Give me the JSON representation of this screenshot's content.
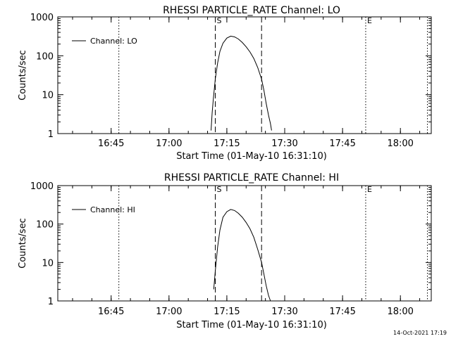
{
  "timestamp": "14-Oct-2021 17:19",
  "chart_data": [
    {
      "type": "line",
      "title": "RHESSI PARTICLE_RATE Channel: LO",
      "xlabel": "Start Time (01-May-10 16:31:10)",
      "ylabel": "Counts/sec",
      "y_scale": "log",
      "ylim": [
        1,
        1000
      ],
      "xlim": [
        "16:31:10",
        "18:08:00"
      ],
      "x_ticks": [
        "16:45",
        "17:00",
        "17:15",
        "17:30",
        "17:45",
        "18:00"
      ],
      "y_ticks": [
        "1",
        "10",
        "100",
        "1000"
      ],
      "legend": {
        "position": "top-left",
        "entries": [
          "Channel: LO"
        ]
      },
      "markers": [
        {
          "label": "S",
          "time": "17:12",
          "style": "dashed"
        },
        {
          "label": "",
          "time": "17:24",
          "style": "dashed"
        },
        {
          "label": "E",
          "time": "17:51",
          "style": "dotted"
        },
        {
          "label": "",
          "time": "16:47",
          "style": "dotted"
        },
        {
          "label": "",
          "time": "18:07",
          "style": "dotted"
        }
      ],
      "series": [
        {
          "name": "Channel: LO",
          "x": [
            "17:10.9",
            "17:11.2",
            "17:11.5",
            "17:12",
            "17:12.6",
            "17:13.2",
            "17:14",
            "17:15",
            "17:16",
            "17:17",
            "17:18",
            "17:19",
            "17:20",
            "17:21",
            "17:22",
            "17:23",
            "17:24",
            "17:24.6",
            "17:25.2",
            "17:25.8",
            "17:26.3",
            "17:26.6"
          ],
          "y": [
            1.2,
            3.5,
            8,
            25,
            65,
            130,
            210,
            285,
            320,
            305,
            270,
            220,
            170,
            125,
            85,
            50,
            25,
            13,
            6,
            3,
            1.8,
            1.2
          ]
        }
      ]
    },
    {
      "type": "line",
      "title": "RHESSI PARTICLE_RATE Channel: HI",
      "xlabel": "Start Time (01-May-10 16:31:10)",
      "ylabel": "Counts/sec",
      "y_scale": "log",
      "ylim": [
        1,
        1000
      ],
      "xlim": [
        "16:31:10",
        "18:08:00"
      ],
      "x_ticks": [
        "16:45",
        "17:00",
        "17:15",
        "17:30",
        "17:45",
        "18:00"
      ],
      "y_ticks": [
        "1",
        "10",
        "100",
        "1000"
      ],
      "legend": {
        "position": "top-left",
        "entries": [
          "Channel: HI"
        ]
      },
      "markers": [
        {
          "label": "S",
          "time": "17:12",
          "style": "dashed"
        },
        {
          "label": "",
          "time": "17:24",
          "style": "dashed"
        },
        {
          "label": "E",
          "time": "17:51",
          "style": "dotted"
        },
        {
          "label": "",
          "time": "16:47",
          "style": "dotted"
        },
        {
          "label": "",
          "time": "18:07",
          "style": "dotted"
        }
      ],
      "series": [
        {
          "name": "Channel: HI",
          "x": [
            "17:11.6",
            "17:12",
            "17:12.6",
            "17:13.2",
            "17:14",
            "17:15",
            "17:16",
            "17:17",
            "17:18",
            "17:19",
            "17:20",
            "17:21",
            "17:22",
            "17:23",
            "17:24",
            "17:24.6",
            "17:25.2",
            "17:25.8",
            "17:26.3"
          ],
          "y": [
            2,
            6,
            25,
            70,
            150,
            210,
            240,
            225,
            190,
            150,
            110,
            75,
            45,
            22,
            10,
            5,
            2.5,
            1.4,
            1
          ]
        }
      ]
    }
  ]
}
